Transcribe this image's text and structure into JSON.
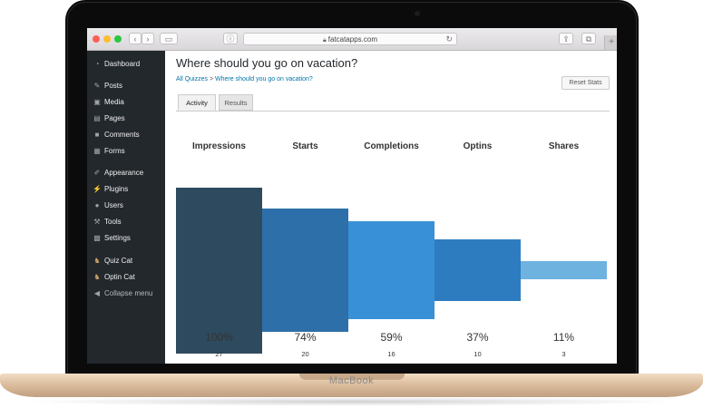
{
  "device": {
    "brand": "MacBook"
  },
  "browser": {
    "url": "fatcatapps.com",
    "plus": "+"
  },
  "sidebar": {
    "items": [
      {
        "label": "Dashboard",
        "icon": "dashboard-icon",
        "glyph": "◔"
      },
      {
        "label": "Posts",
        "icon": "pin-icon",
        "glyph": "✎"
      },
      {
        "label": "Media",
        "icon": "media-icon",
        "glyph": "▣"
      },
      {
        "label": "Pages",
        "icon": "pages-icon",
        "glyph": "▤"
      },
      {
        "label": "Comments",
        "icon": "comment-icon",
        "glyph": "■"
      },
      {
        "label": "Forms",
        "icon": "forms-icon",
        "glyph": "▦"
      },
      {
        "label": "Appearance",
        "icon": "brush-icon",
        "glyph": "✐"
      },
      {
        "label": "Plugins",
        "icon": "plugin-icon",
        "glyph": "⚡"
      },
      {
        "label": "Users",
        "icon": "user-icon",
        "glyph": "●"
      },
      {
        "label": "Tools",
        "icon": "wrench-icon",
        "glyph": "⚒"
      },
      {
        "label": "Settings",
        "icon": "settings-icon",
        "glyph": "▩"
      },
      {
        "label": "Quiz Cat",
        "icon": "cat-icon",
        "glyph": "♞"
      },
      {
        "label": "Optin Cat",
        "icon": "cat-icon",
        "glyph": "♞"
      },
      {
        "label": "Collapse menu",
        "icon": "collapse-icon",
        "glyph": "◀"
      }
    ]
  },
  "page": {
    "title": "Where should you go on vacation?",
    "breadcrumb": {
      "root": "All Quizzes",
      "separator": ">",
      "current": "Where should you go on vacation?"
    },
    "reset_label": "Reset Stats",
    "tabs": [
      {
        "label": "Activity",
        "active": true
      },
      {
        "label": "Results",
        "active": false
      }
    ]
  },
  "chart_data": {
    "type": "bar",
    "categories": [
      "Impressions",
      "Starts",
      "Completions",
      "Optins",
      "Shares"
    ],
    "values": [
      27,
      20,
      16,
      10,
      3
    ],
    "percent_labels": [
      "100%",
      "74%",
      "59%",
      "37%",
      "11%"
    ],
    "count_labels": [
      "27",
      "20",
      "16",
      "10",
      "3"
    ],
    "colors": [
      "#2e4a5f",
      "#2d6fa8",
      "#3891d6",
      "#2d7cc0",
      "#6eb2e0"
    ],
    "ylim": [
      0,
      27
    ]
  }
}
